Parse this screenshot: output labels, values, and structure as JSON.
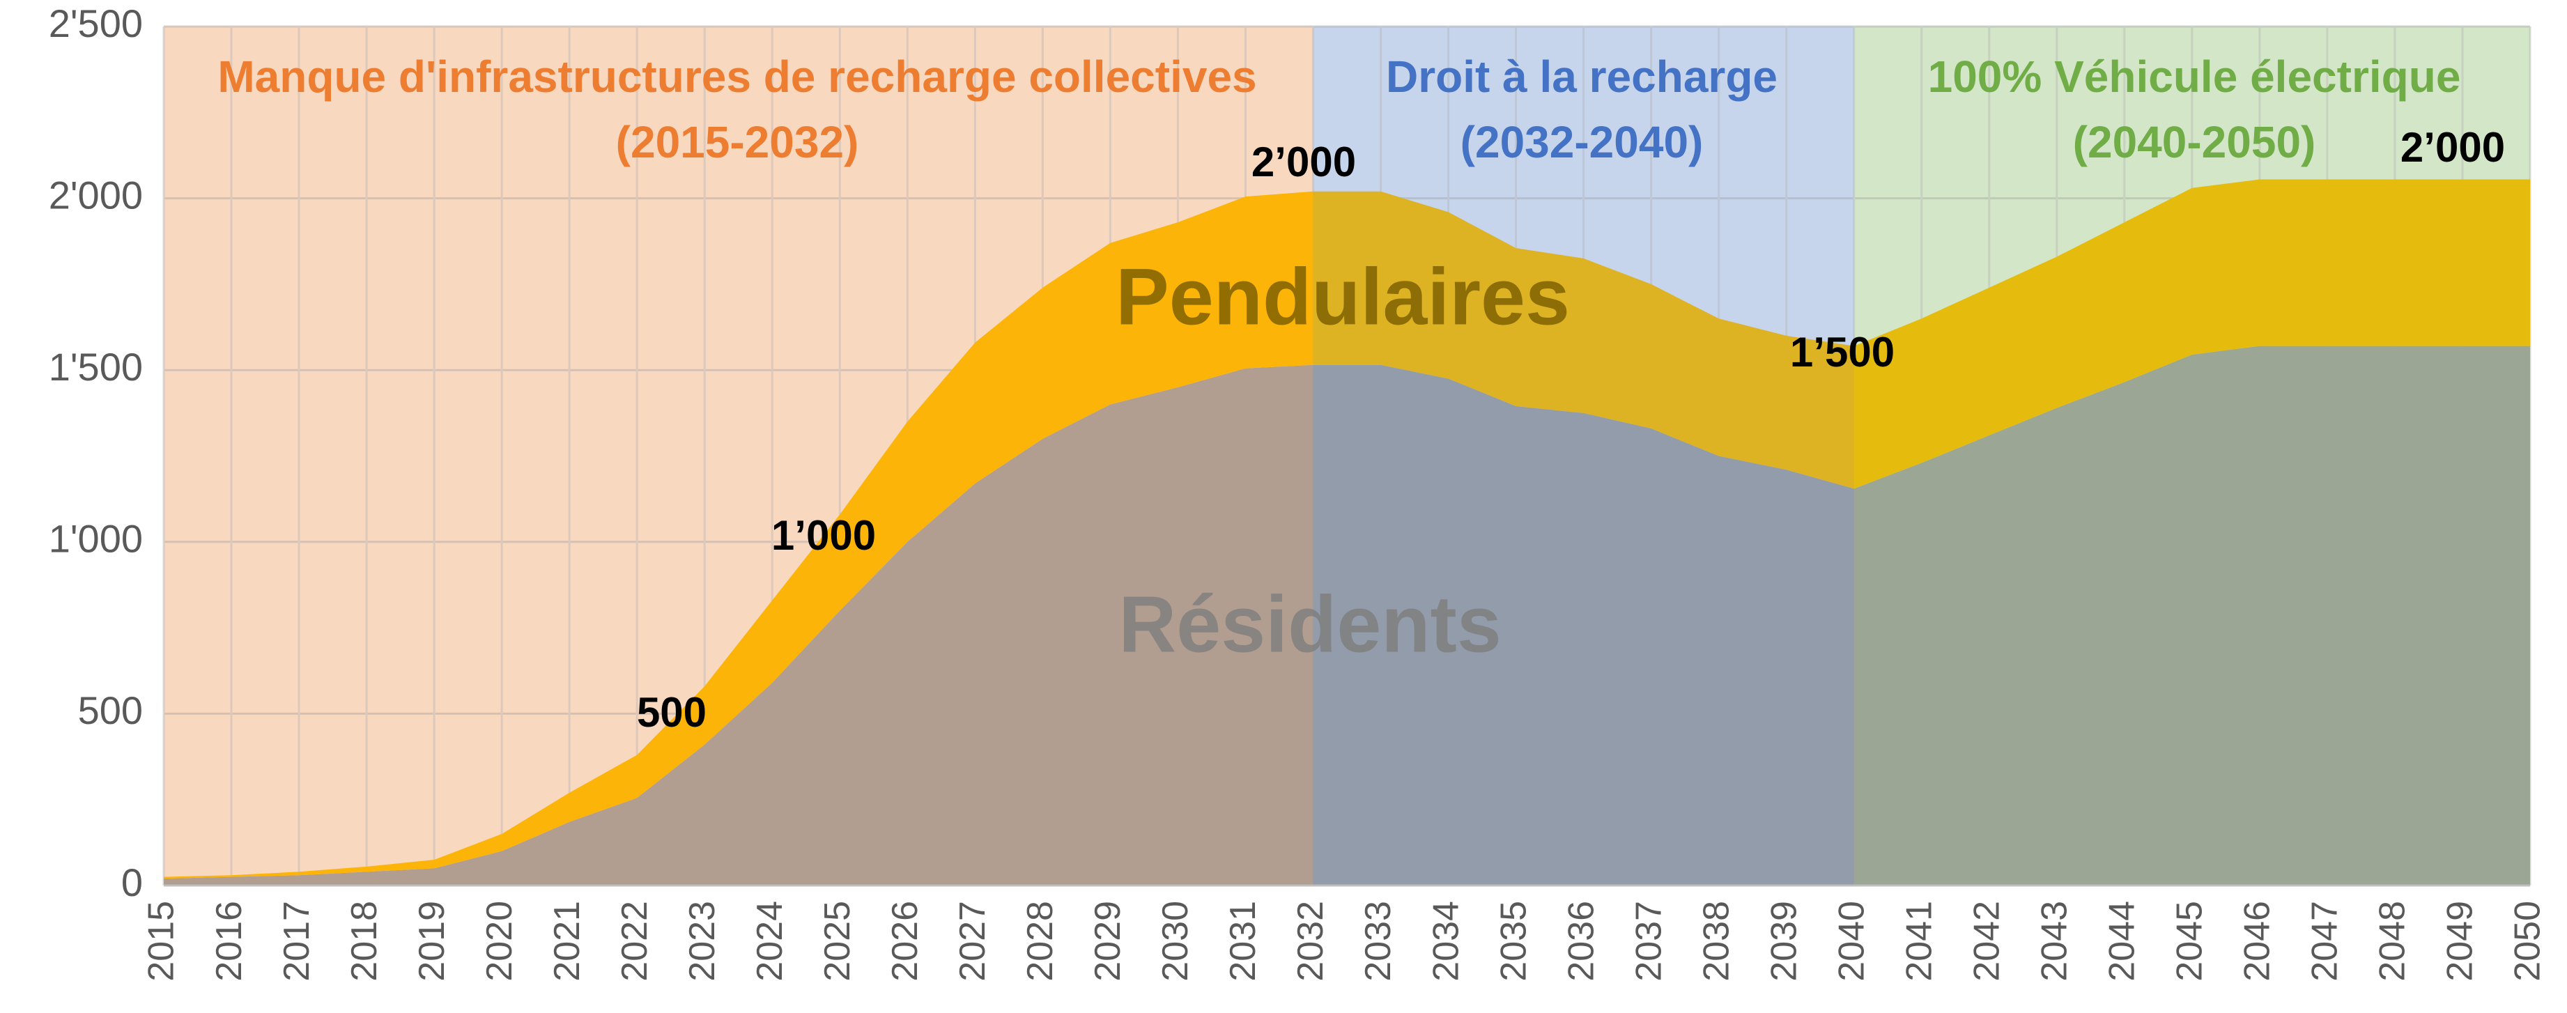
{
  "chart_data": {
    "type": "stacked_area",
    "x": [
      2015,
      2016,
      2017,
      2018,
      2019,
      2020,
      2021,
      2022,
      2023,
      2024,
      2025,
      2026,
      2027,
      2028,
      2029,
      2030,
      2031,
      2032,
      2033,
      2034,
      2035,
      2036,
      2037,
      2038,
      2039,
      2040,
      2041,
      2042,
      2043,
      2044,
      2045,
      2046,
      2047,
      2048,
      2049,
      2050
    ],
    "xlim": [
      2015,
      2050
    ],
    "ylim": [
      0,
      2500
    ],
    "yticks": [
      0,
      500,
      {
        "value": 1000,
        "label": "1'000"
      },
      {
        "value": 1500,
        "label": "1'500"
      },
      {
        "value": 2000,
        "label": "2'000"
      },
      {
        "value": 2500,
        "label": "2'500"
      }
    ],
    "grid": true,
    "series": [
      {
        "name": "Résidents",
        "color": "#a5a5a5",
        "values": [
          20,
          25,
          30,
          40,
          50,
          100,
          185,
          255,
          410,
          590,
          800,
          1000,
          1170,
          1300,
          1400,
          1450,
          1505,
          1515,
          1515,
          1475,
          1395,
          1375,
          1330,
          1250,
          1210,
          1155,
          1230,
          1310,
          1390,
          1465,
          1545,
          1570,
          1570,
          1570,
          1570,
          1570
        ]
      },
      {
        "name": "Pendulaires",
        "color": "#ffc000",
        "values": [
          5,
          5,
          10,
          15,
          25,
          50,
          85,
          125,
          170,
          240,
          280,
          350,
          410,
          440,
          470,
          480,
          500,
          505,
          505,
          485,
          460,
          450,
          420,
          400,
          390,
          415,
          420,
          430,
          440,
          465,
          485,
          485,
          485,
          485,
          485,
          485
        ]
      }
    ],
    "regions": [
      {
        "label": "Manque d'infrastructures de recharge collectives",
        "period": "(2015-2032)",
        "start": 2015,
        "end": 2032,
        "color": "#ed7d31"
      },
      {
        "label": "Droit à la recharge",
        "period": "(2032-2040)",
        "start": 2032,
        "end": 2040,
        "color": "#4472c4"
      },
      {
        "label": "100% Véhicule électrique",
        "period": "(2040-2050)",
        "start": 2040,
        "end": 2050,
        "color": "#70ad47"
      }
    ],
    "annotations": [
      "500",
      "1’000",
      "2’000",
      "1’500",
      "2’000"
    ]
  }
}
